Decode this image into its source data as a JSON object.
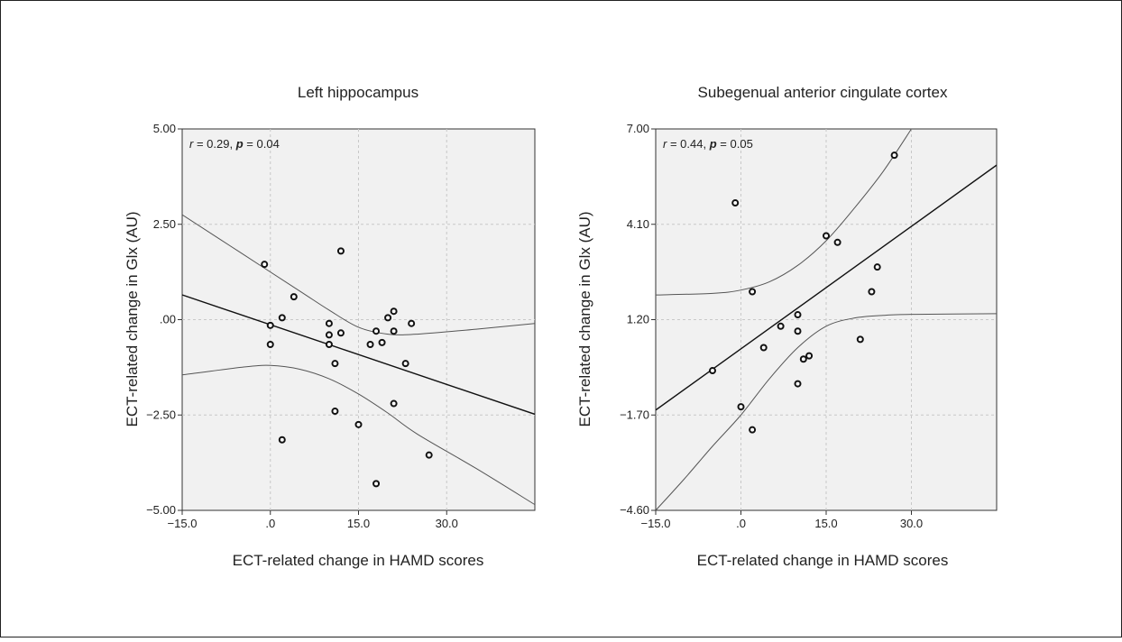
{
  "chart_data": [
    {
      "type": "scatter",
      "title": "Left hippocampus",
      "xlabel": "ECT-related change in HAMD scores",
      "ylabel": "ECT-related change in Glx (AU)",
      "xlim": [
        -15,
        45
      ],
      "ylim": [
        -5,
        5
      ],
      "xticks": [
        -15,
        0,
        15,
        30
      ],
      "xtick_labels": [
        "−15.0",
        ".0",
        "15.0",
        "30.0"
      ],
      "yticks": [
        -5,
        -2.5,
        0,
        2.5,
        5
      ],
      "ytick_labels": [
        "−5.00",
        "−2.50",
        ".00",
        "2.50",
        "5.00"
      ],
      "stat_r": "0.29",
      "stat_p": "0.04",
      "grid": true,
      "points": [
        {
          "x": -1,
          "y": 1.45
        },
        {
          "x": 0,
          "y": -0.15
        },
        {
          "x": 0,
          "y": -0.65
        },
        {
          "x": 2,
          "y": 0.05
        },
        {
          "x": 2,
          "y": -3.15
        },
        {
          "x": 4,
          "y": 0.6
        },
        {
          "x": 10,
          "y": -0.1
        },
        {
          "x": 10,
          "y": -0.4
        },
        {
          "x": 10,
          "y": -0.65
        },
        {
          "x": 11,
          "y": -1.15
        },
        {
          "x": 11,
          "y": -2.4
        },
        {
          "x": 12,
          "y": 1.8
        },
        {
          "x": 12,
          "y": -0.35
        },
        {
          "x": 15,
          "y": -2.75
        },
        {
          "x": 17,
          "y": -0.65
        },
        {
          "x": 18,
          "y": -0.3
        },
        {
          "x": 18,
          "y": -4.3
        },
        {
          "x": 19,
          "y": -0.6
        },
        {
          "x": 20,
          "y": 0.05
        },
        {
          "x": 21,
          "y": 0.22
        },
        {
          "x": 21,
          "y": -0.3
        },
        {
          "x": 21,
          "y": -2.2
        },
        {
          "x": 23,
          "y": -1.15
        },
        {
          "x": 24,
          "y": -0.1
        },
        {
          "x": 27,
          "y": -3.55
        }
      ],
      "fit_line": {
        "x": [
          -15,
          45
        ],
        "y": [
          0.65,
          -2.48
        ]
      },
      "ci_upper": {
        "x": [
          -15,
          -5,
          5,
          10,
          15,
          20,
          25,
          35,
          45
        ],
        "y": [
          2.75,
          1.75,
          0.75,
          0.25,
          -0.2,
          -0.38,
          -0.38,
          -0.25,
          -0.1
        ]
      },
      "ci_lower": {
        "x": [
          -15,
          -5,
          0,
          5,
          10,
          15,
          20,
          25,
          35,
          45
        ],
        "y": [
          -1.45,
          -1.25,
          -1.2,
          -1.3,
          -1.55,
          -1.95,
          -2.45,
          -3.0,
          -3.9,
          -4.85
        ]
      }
    },
    {
      "type": "scatter",
      "title": "Subegenual anterior cingulate cortex",
      "xlabel": "ECT-related change in HAMD scores",
      "ylabel": "ECT-related change in Glx (AU)",
      "xlim": [
        -15,
        45
      ],
      "ylim": [
        -4.6,
        7.0
      ],
      "xticks": [
        -15,
        0,
        15,
        30
      ],
      "xtick_labels": [
        "−15.0",
        ".0",
        "15.0",
        "30.0"
      ],
      "yticks": [
        -4.6,
        -1.7,
        1.2,
        4.1,
        7.0
      ],
      "ytick_labels": [
        "−4.60",
        "−1.70",
        "1.20",
        "4.10",
        "7.00"
      ],
      "stat_r": "0.44",
      "stat_p": "0.05",
      "grid": true,
      "points": [
        {
          "x": -5,
          "y": -0.35
        },
        {
          "x": -1,
          "y": 4.75
        },
        {
          "x": 0,
          "y": -1.45
        },
        {
          "x": 2,
          "y": 2.05
        },
        {
          "x": 2,
          "y": -2.15
        },
        {
          "x": 4,
          "y": 0.35
        },
        {
          "x": 7,
          "y": 1.0
        },
        {
          "x": 10,
          "y": 1.35
        },
        {
          "x": 10,
          "y": 0.85
        },
        {
          "x": 10,
          "y": -0.75
        },
        {
          "x": 11,
          "y": 0.0
        },
        {
          "x": 12,
          "y": 0.1
        },
        {
          "x": 15,
          "y": 3.75
        },
        {
          "x": 17,
          "y": 3.55
        },
        {
          "x": 21,
          "y": 0.6
        },
        {
          "x": 23,
          "y": 2.05
        },
        {
          "x": 24,
          "y": 2.8
        },
        {
          "x": 27,
          "y": 6.2
        }
      ],
      "fit_line": {
        "x": [
          -15,
          45
        ],
        "y": [
          -1.55,
          5.9
        ]
      },
      "ci_upper": {
        "x": [
          -15,
          -5,
          0,
          5,
          10,
          15,
          20,
          25,
          30
        ],
        "y": [
          1.95,
          2.0,
          2.1,
          2.35,
          2.85,
          3.6,
          4.6,
          5.7,
          7.0
        ]
      },
      "ci_lower": {
        "x": [
          -15,
          -10,
          -5,
          0,
          5,
          10,
          15,
          20,
          25,
          30,
          45
        ],
        "y": [
          -4.6,
          -3.65,
          -2.65,
          -1.7,
          -0.6,
          0.35,
          1.0,
          1.25,
          1.33,
          1.36,
          1.38
        ]
      }
    }
  ]
}
